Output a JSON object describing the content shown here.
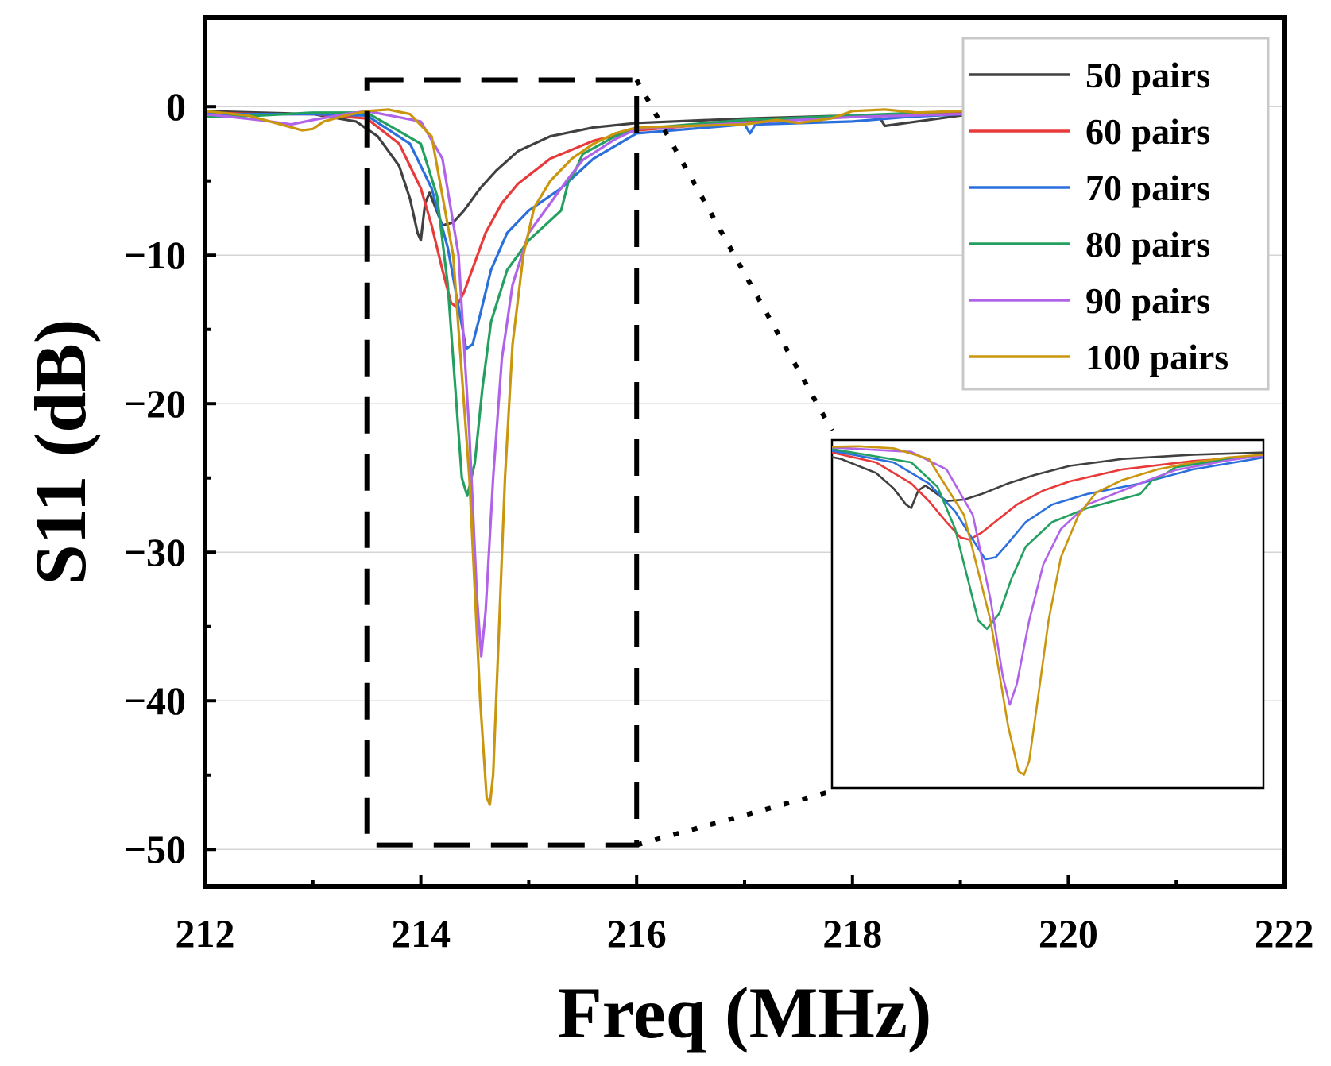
{
  "chart_data": {
    "type": "line",
    "title": "",
    "xlabel": "Freq (MHz)",
    "ylabel": "S11 (dB)",
    "xlim": [
      212,
      222
    ],
    "ylim": [
      -52.5,
      6
    ],
    "xticks": [
      212,
      214,
      216,
      218,
      220,
      222
    ],
    "xtick_labels": [
      "212",
      "214",
      "216",
      "218",
      "220",
      "222"
    ],
    "yticks": [
      0,
      -10,
      -20,
      -30,
      -40,
      -50
    ],
    "ytick_labels": [
      "0",
      "−10",
      "−20",
      "−30",
      "−40",
      "−50"
    ],
    "grid": true,
    "legend_position": "top-right",
    "zoom_box": {
      "x": [
        213.5,
        216
      ],
      "y": [
        -49.7,
        1.8
      ]
    },
    "series": [
      {
        "name": "50 pairs",
        "color": "#404040",
        "x": [
          212,
          212.5,
          213,
          213.4,
          213.6,
          213.8,
          213.9,
          213.97,
          214.0,
          214.04,
          214.08,
          214.12,
          214.2,
          214.3,
          214.4,
          214.55,
          214.7,
          214.9,
          215.2,
          215.6,
          216,
          217,
          218,
          218.25,
          218.3,
          219,
          219.5
        ],
        "values": [
          -0.3,
          -0.4,
          -0.5,
          -1.0,
          -2.0,
          -4.0,
          -6.2,
          -8.5,
          -9.0,
          -6.5,
          -5.8,
          -6.5,
          -8.0,
          -7.8,
          -7.0,
          -5.5,
          -4.3,
          -3.0,
          -2.0,
          -1.4,
          -1.1,
          -0.8,
          -0.6,
          -0.7,
          -1.3,
          -0.6,
          -0.5
        ]
      },
      {
        "name": "60 pairs",
        "color": "#e83a3a",
        "x": [
          212,
          212.5,
          213,
          213.5,
          213.8,
          214.0,
          214.1,
          214.2,
          214.28,
          214.33,
          214.4,
          214.5,
          214.6,
          214.75,
          214.9,
          215.2,
          215.6,
          216,
          217,
          218,
          218.5,
          219.3
        ],
        "values": [
          -0.4,
          -0.5,
          -0.5,
          -0.8,
          -2.5,
          -5.5,
          -8.0,
          -11.0,
          -13.2,
          -13.5,
          -12.5,
          -10.5,
          -8.5,
          -6.5,
          -5.2,
          -3.5,
          -2.3,
          -1.6,
          -1.0,
          -0.7,
          -0.5,
          -0.3
        ]
      },
      {
        "name": "70 pairs",
        "color": "#2a6fdb",
        "x": [
          212,
          212.5,
          213,
          213.5,
          213.9,
          214.1,
          214.25,
          214.35,
          214.42,
          214.48,
          214.55,
          214.65,
          214.8,
          215.0,
          215.3,
          215.6,
          216,
          217,
          217.05,
          217.1,
          218,
          218.5,
          219.3
        ],
        "values": [
          -0.5,
          -0.5,
          -0.5,
          -0.6,
          -2.5,
          -5.5,
          -9.5,
          -13.5,
          -16.3,
          -16.0,
          -14.0,
          -11.0,
          -8.5,
          -7.0,
          -5.5,
          -3.5,
          -1.8,
          -1.2,
          -1.8,
          -1.2,
          -1.0,
          -0.7,
          -0.4
        ]
      },
      {
        "name": "80 pairs",
        "color": "#23a05f",
        "x": [
          212,
          212.5,
          213,
          213.5,
          214.0,
          214.15,
          214.25,
          214.33,
          214.38,
          214.43,
          214.5,
          214.57,
          214.65,
          214.8,
          215.0,
          215.3,
          215.37,
          215.42,
          215.5,
          215.8,
          216,
          217,
          218,
          219,
          219.3
        ],
        "values": [
          -0.7,
          -0.6,
          -0.4,
          -0.4,
          -2.5,
          -6.0,
          -12.0,
          -20.0,
          -25.0,
          -26.2,
          -24.0,
          -19.0,
          -14.5,
          -11.0,
          -9.0,
          -7.0,
          -5.0,
          -4.5,
          -3.2,
          -2.0,
          -1.5,
          -0.9,
          -0.6,
          -0.3,
          -0.2
        ]
      },
      {
        "name": "90 pairs",
        "color": "#b063e8",
        "x": [
          212,
          212.5,
          212.8,
          213.0,
          213.3,
          213.5,
          214.0,
          214.2,
          214.35,
          214.45,
          214.52,
          214.56,
          214.6,
          214.67,
          214.75,
          214.85,
          215.0,
          215.2,
          215.35,
          215.5,
          215.8,
          216,
          217,
          218,
          219
        ],
        "values": [
          -0.5,
          -0.9,
          -1.2,
          -0.9,
          -0.5,
          -0.3,
          -1.0,
          -3.5,
          -10.0,
          -22.0,
          -33.0,
          -37.0,
          -34.0,
          -25.0,
          -17.0,
          -12.0,
          -8.5,
          -6.5,
          -5.0,
          -3.6,
          -2.2,
          -1.5,
          -1.1,
          -0.7,
          -0.5
        ]
      },
      {
        "name": "100 pairs",
        "color": "#c9960d",
        "x": [
          212,
          212.4,
          212.7,
          212.9,
          213.0,
          213.1,
          213.3,
          213.5,
          213.7,
          213.9,
          214.1,
          214.3,
          214.45,
          214.55,
          214.61,
          214.64,
          214.67,
          214.72,
          214.78,
          214.85,
          214.95,
          215.05,
          215.2,
          215.4,
          215.6,
          215.8,
          216.0,
          216.5,
          217.0,
          217.3,
          217.5,
          217.8,
          218.0,
          218.3,
          218.6,
          219.0
        ],
        "values": [
          -0.3,
          -0.6,
          -1.2,
          -1.6,
          -1.5,
          -1.0,
          -0.6,
          -0.3,
          -0.2,
          -0.5,
          -2.0,
          -10.0,
          -25.0,
          -40.0,
          -46.5,
          -47.0,
          -45.0,
          -36.0,
          -25.0,
          -16.0,
          -10.0,
          -6.8,
          -5.0,
          -3.5,
          -2.5,
          -1.8,
          -1.4,
          -1.3,
          -1.2,
          -0.9,
          -1.1,
          -0.8,
          -0.3,
          -0.2,
          -0.4,
          -0.3
        ]
      }
    ]
  }
}
